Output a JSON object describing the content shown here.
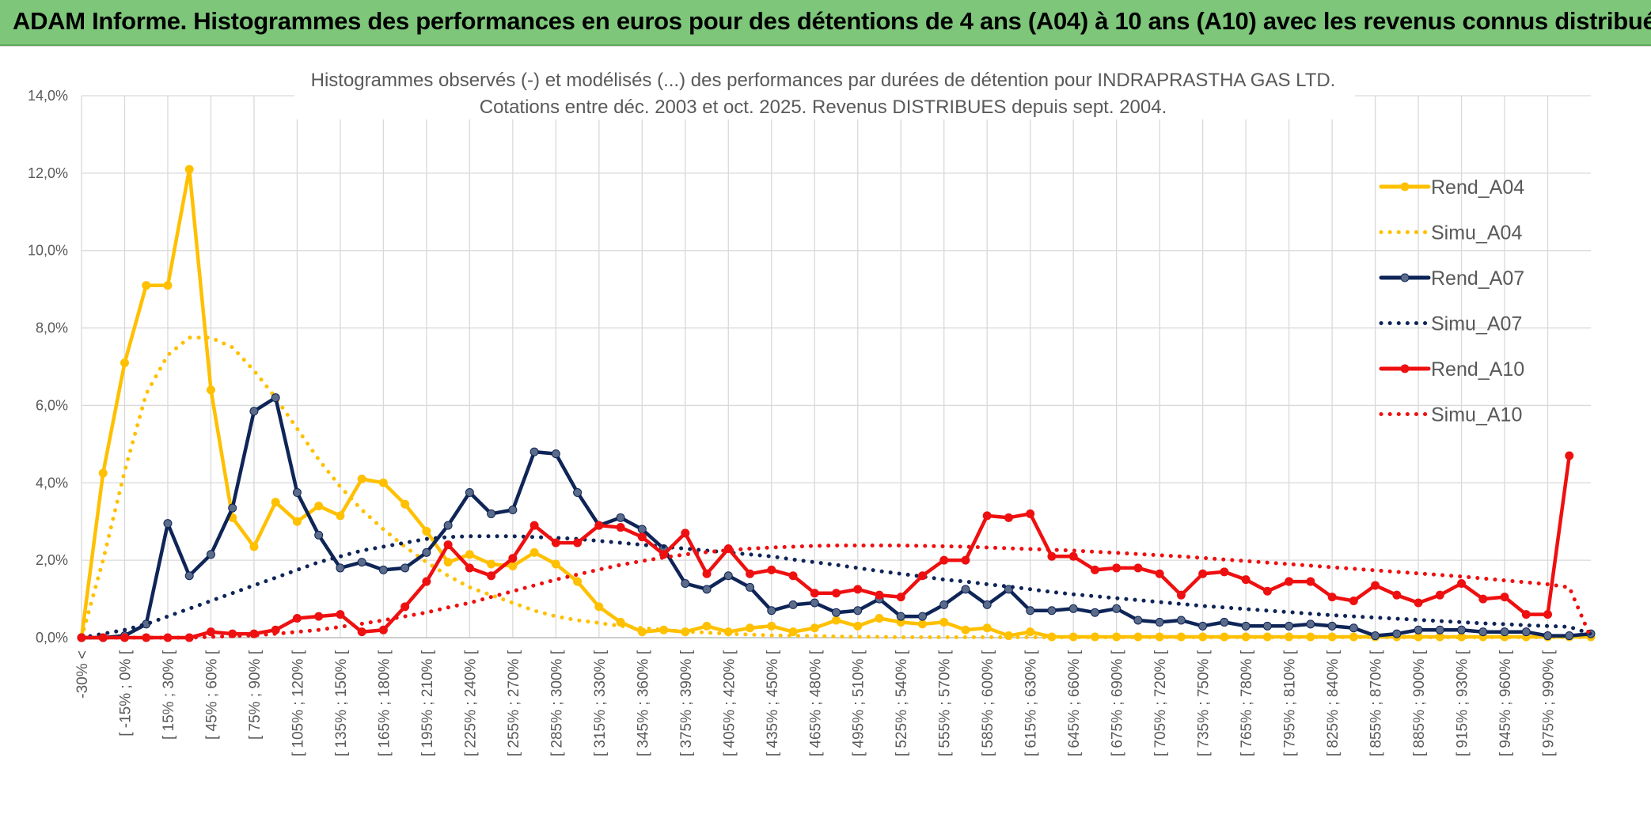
{
  "header": {
    "title": "ADAM Informe. Histogrammes des performances en euros pour des détentions de 4 ans (A04) à 10 ans (A10) avec les revenus connus distribués"
  },
  "chart_data": {
    "type": "line",
    "title": "Histogrammes observés (-) et modélisés (...) des performances par durées de détention pour INDRAPRASTHA GAS LTD.",
    "subtitle": "Cotations entre déc. 2003 et oct. 2025. Revenus DISTRIBUES depuis sept. 2004.",
    "xlabel": "",
    "ylabel": "",
    "ylim": [
      0,
      14
    ],
    "yticks": [
      "0,0%",
      "2,0%",
      "4,0%",
      "6,0%",
      "8,0%",
      "10,0%",
      "12,0%",
      "14,0%"
    ],
    "grid": true,
    "legend_position": "right",
    "x_tick_labels": [
      "-30% <",
      "[ -15% ; 0% [",
      "[ 15% ; 30% [",
      "[ 45% ; 60% [",
      "[ 75% ; 90% [",
      "[ 105% ; 120% [",
      "[ 135% ; 150% [",
      "[ 165% ; 180% [",
      "[ 195% ; 210% [",
      "[ 225% ; 240% [",
      "[ 255% ; 270% [",
      "[ 285% ; 300% [",
      "[ 315% ; 330% [",
      "[ 345% ; 360% [",
      "[ 375% ; 390% [",
      "[ 405% ; 420% [",
      "[ 435% ; 450% [",
      "[ 465% ; 480% [",
      "[ 495% ; 510% [",
      "[ 525% ; 540% [",
      "[ 555% ; 570% [",
      "[ 585% ; 600% [",
      "[ 615% ; 630% [",
      "[ 645% ; 660% [",
      "[ 675% ; 690% [",
      "[ 705% ; 720% [",
      "[ 735% ; 750% [",
      "[ 765% ; 780% [",
      "[ 795% ; 810% [",
      "[ 825% ; 840% [",
      "[ 855% ; 870% [",
      "[ 885% ; 900% [",
      "[ 915% ; 930% [",
      "[ 945% ; 960% [",
      "[ 975% ; 990% ["
    ],
    "series": [
      {
        "name": "Rend_A04",
        "color": "#ffc000",
        "style": "solid",
        "marker": true,
        "values": [
          0,
          4.25,
          7.1,
          9.1,
          9.1,
          12.1,
          6.4,
          3.1,
          2.35,
          3.5,
          3.0,
          3.4,
          3.15,
          4.1,
          4.0,
          3.45,
          2.75,
          1.95,
          2.15,
          1.9,
          1.85,
          2.2,
          1.9,
          1.45,
          0.8,
          0.4,
          0.15,
          0.2,
          0.15,
          0.3,
          0.15,
          0.25,
          0.3,
          0.15,
          0.25,
          0.45,
          0.3,
          0.5,
          0.4,
          0.35,
          0.4,
          0.2,
          0.25,
          0.05,
          0.15,
          0.02,
          0.02,
          0.02,
          0.02,
          0.02,
          0.02,
          0.02,
          0.02,
          0.02,
          0.02,
          0.02,
          0.02,
          0.02,
          0.02,
          0.02,
          0.02,
          0.02,
          0.02,
          0.02,
          0.02,
          0.02,
          0.02,
          0.02,
          0.02,
          0.02,
          0.02
        ]
      },
      {
        "name": "Simu_A04",
        "color": "#ffc000",
        "style": "dotted",
        "marker": false,
        "values": [
          0,
          2.0,
          4.3,
          6.3,
          7.3,
          7.75,
          7.75,
          7.5,
          6.9,
          6.2,
          5.4,
          4.6,
          3.9,
          3.3,
          2.8,
          2.35,
          1.95,
          1.6,
          1.3,
          1.1,
          0.9,
          0.7,
          0.55,
          0.45,
          0.38,
          0.3,
          0.25,
          0.2,
          0.16,
          0.13,
          0.1,
          0.08,
          0.06,
          0.05,
          0.04,
          0.03,
          0.02,
          0.02,
          0.01,
          0.01,
          0.01,
          0.01,
          0.01,
          0.01,
          0.01,
          0.01,
          0.01,
          0.01,
          0.01,
          0.01,
          0.01,
          0.01,
          0.01,
          0.01,
          0.01,
          0.01,
          0.01,
          0.01,
          0.01,
          0.01,
          0.01,
          0.01,
          0.01,
          0.01,
          0.01,
          0.01,
          0.01,
          0.01,
          0.01,
          0.01,
          0.01
        ]
      },
      {
        "name": "Rend_A07",
        "color": "#0f2557",
        "style": "solid",
        "marker": true,
        "values": [
          0,
          0,
          0.05,
          0.35,
          2.95,
          1.6,
          2.15,
          3.35,
          5.85,
          6.2,
          3.75,
          2.65,
          1.8,
          1.95,
          1.75,
          1.8,
          2.2,
          2.9,
          3.75,
          3.2,
          3.3,
          4.8,
          4.75,
          3.75,
          2.9,
          3.1,
          2.8,
          2.3,
          1.4,
          1.25,
          1.6,
          1.3,
          0.7,
          0.85,
          0.9,
          0.65,
          0.7,
          1.0,
          0.55,
          0.55,
          0.85,
          1.25,
          0.85,
          1.25,
          0.7,
          0.7,
          0.75,
          0.65,
          0.75,
          0.45,
          0.4,
          0.45,
          0.3,
          0.4,
          0.3,
          0.3,
          0.3,
          0.35,
          0.3,
          0.25,
          0.05,
          0.1,
          0.2,
          0.2,
          0.2,
          0.15,
          0.15,
          0.15,
          0.05,
          0.05,
          0.1
        ]
      },
      {
        "name": "Simu_A07",
        "color": "#0f2557",
        "style": "dotted",
        "marker": false,
        "values": [
          0,
          0.1,
          0.2,
          0.35,
          0.55,
          0.75,
          0.95,
          1.15,
          1.35,
          1.55,
          1.75,
          1.95,
          2.1,
          2.25,
          2.35,
          2.45,
          2.55,
          2.6,
          2.62,
          2.62,
          2.62,
          2.6,
          2.58,
          2.55,
          2.5,
          2.45,
          2.4,
          2.35,
          2.3,
          2.25,
          2.2,
          2.15,
          2.1,
          2.02,
          1.95,
          1.88,
          1.8,
          1.72,
          1.65,
          1.58,
          1.5,
          1.45,
          1.38,
          1.32,
          1.25,
          1.18,
          1.12,
          1.07,
          1.02,
          0.97,
          0.92,
          0.87,
          0.82,
          0.78,
          0.74,
          0.7,
          0.66,
          0.62,
          0.58,
          0.55,
          0.52,
          0.49,
          0.46,
          0.43,
          0.4,
          0.37,
          0.35,
          0.32,
          0.3,
          0.28,
          0.1
        ]
      },
      {
        "name": "Rend_A10",
        "color": "#ee1010",
        "style": "solid",
        "marker": true,
        "values": [
          0,
          0,
          0,
          0,
          0,
          0,
          0.15,
          0.1,
          0.1,
          0.2,
          0.5,
          0.55,
          0.6,
          0.15,
          0.2,
          0.8,
          1.45,
          2.4,
          1.8,
          1.6,
          2.05,
          2.9,
          2.45,
          2.45,
          2.9,
          2.85,
          2.6,
          2.15,
          2.7,
          1.65,
          2.3,
          1.65,
          1.75,
          1.6,
          1.15,
          1.15,
          1.25,
          1.1,
          1.05,
          1.6,
          2.0,
          2.0,
          3.15,
          3.1,
          3.2,
          2.1,
          2.1,
          1.75,
          1.8,
          1.8,
          1.65,
          1.1,
          1.65,
          1.7,
          1.5,
          1.2,
          1.45,
          1.45,
          1.05,
          0.95,
          1.35,
          1.1,
          0.9,
          1.1,
          1.4,
          1.0,
          1.05,
          0.6,
          0.6,
          4.7
        ]
      },
      {
        "name": "Simu_A10",
        "color": "#ee1010",
        "style": "dotted",
        "marker": false,
        "values": [
          0,
          0,
          0,
          0,
          0,
          0,
          0.02,
          0.04,
          0.06,
          0.1,
          0.15,
          0.2,
          0.28,
          0.36,
          0.45,
          0.55,
          0.65,
          0.78,
          0.9,
          1.05,
          1.2,
          1.35,
          1.5,
          1.63,
          1.76,
          1.88,
          1.98,
          2.07,
          2.15,
          2.21,
          2.26,
          2.3,
          2.33,
          2.35,
          2.37,
          2.38,
          2.38,
          2.38,
          2.38,
          2.37,
          2.36,
          2.35,
          2.33,
          2.31,
          2.29,
          2.27,
          2.25,
          2.22,
          2.19,
          2.16,
          2.13,
          2.1,
          2.06,
          2.02,
          1.98,
          1.94,
          1.9,
          1.86,
          1.82,
          1.78,
          1.74,
          1.7,
          1.66,
          1.62,
          1.58,
          1.53,
          1.48,
          1.43,
          1.38,
          1.3,
          0
        ]
      }
    ]
  }
}
